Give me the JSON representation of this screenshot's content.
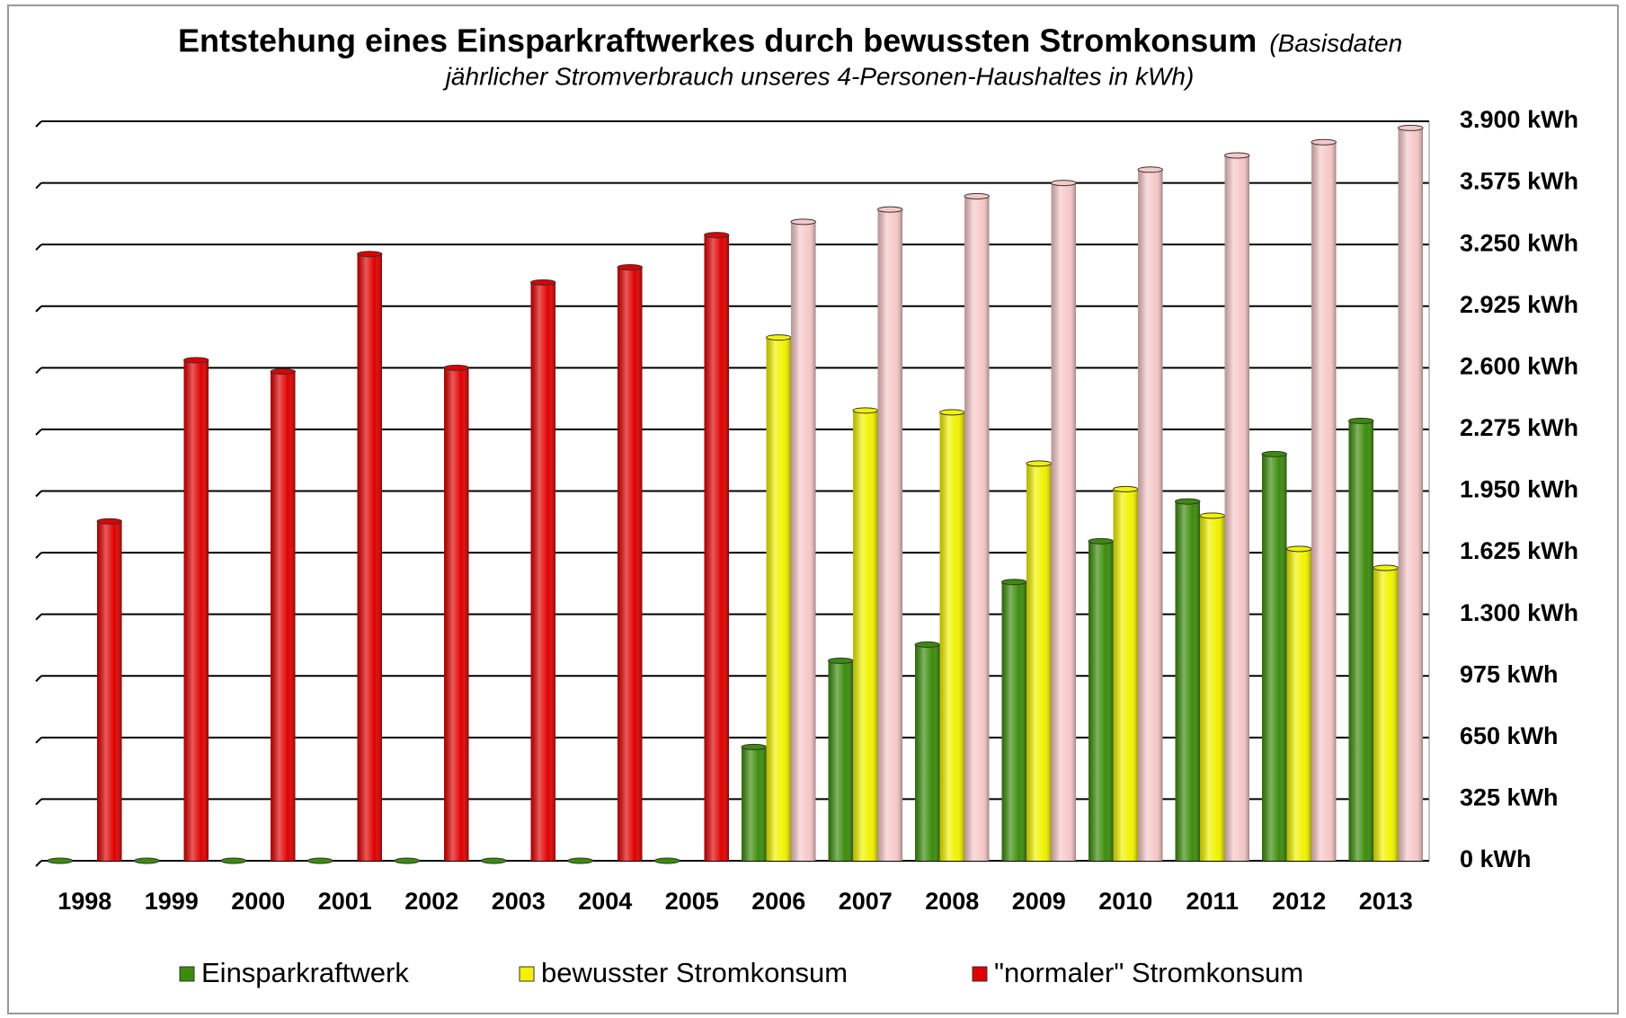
{
  "chart_data": {
    "type": "bar",
    "title": "Entstehung eines Einsparkraftwerkes durch bewussten Stromkonsum",
    "subtitle": [
      "(Basisdaten",
      "jährlicher Stromverbrauch unseres 4-Personen-Haushaltes in kWh)"
    ],
    "categories": [
      "1998",
      "1999",
      "2000",
      "2001",
      "2002",
      "2003",
      "2004",
      "2005",
      "2006",
      "2007",
      "2008",
      "2009",
      "2010",
      "2011",
      "2012",
      "2013"
    ],
    "series": [
      {
        "name": "Einsparkraftwerk",
        "color": "#3c8c0c",
        "values": [
          0,
          0,
          0,
          0,
          0,
          0,
          0,
          0,
          600,
          1055,
          1140,
          1470,
          1685,
          1895,
          2145,
          2320
        ]
      },
      {
        "name": "bewusster Stromkonsum",
        "color": "#f2f200",
        "values": [
          null,
          null,
          null,
          null,
          null,
          null,
          null,
          null,
          2760,
          2375,
          2365,
          2095,
          1960,
          1820,
          1645,
          1545
        ]
      },
      {
        "name": "\"normaler\" Stromkonsum",
        "color": "#e00000",
        "colors": [
          "#e00000",
          "#e00000",
          "#e00000",
          "#e00000",
          "#e00000",
          "#e00000",
          "#e00000",
          "#e00000",
          "#f7c8c8",
          "#f7c8c8",
          "#f7c8c8",
          "#f7c8c8",
          "#f7c8c8",
          "#f7c8c8",
          "#f7c8c8",
          "#f7c8c8"
        ],
        "values": [
          1790,
          2640,
          2580,
          3200,
          2600,
          3050,
          3130,
          3300,
          3370,
          3435,
          3505,
          3575,
          3645,
          3720,
          3790,
          3865
        ]
      }
    ],
    "ylim": [
      0,
      3900
    ],
    "yticks": [
      {
        "value": 0,
        "label": "0 kWh"
      },
      {
        "value": 325,
        "label": "325 kWh"
      },
      {
        "value": 650,
        "label": "650 kWh"
      },
      {
        "value": 975,
        "label": "975 kWh"
      },
      {
        "value": 1300,
        "label": "1.300 kWh"
      },
      {
        "value": 1625,
        "label": "1.625 kWh"
      },
      {
        "value": 1950,
        "label": "1.950 kWh"
      },
      {
        "value": 2275,
        "label": "2.275 kWh"
      },
      {
        "value": 2600,
        "label": "2.600 kWh"
      },
      {
        "value": 2925,
        "label": "2.925 kWh"
      },
      {
        "value": 3250,
        "label": "3.250 kWh"
      },
      {
        "value": 3575,
        "label": "3.575 kWh"
      },
      {
        "value": 3900,
        "label": "3.900 kWh"
      }
    ],
    "grid": true,
    "legend": "bottom"
  }
}
